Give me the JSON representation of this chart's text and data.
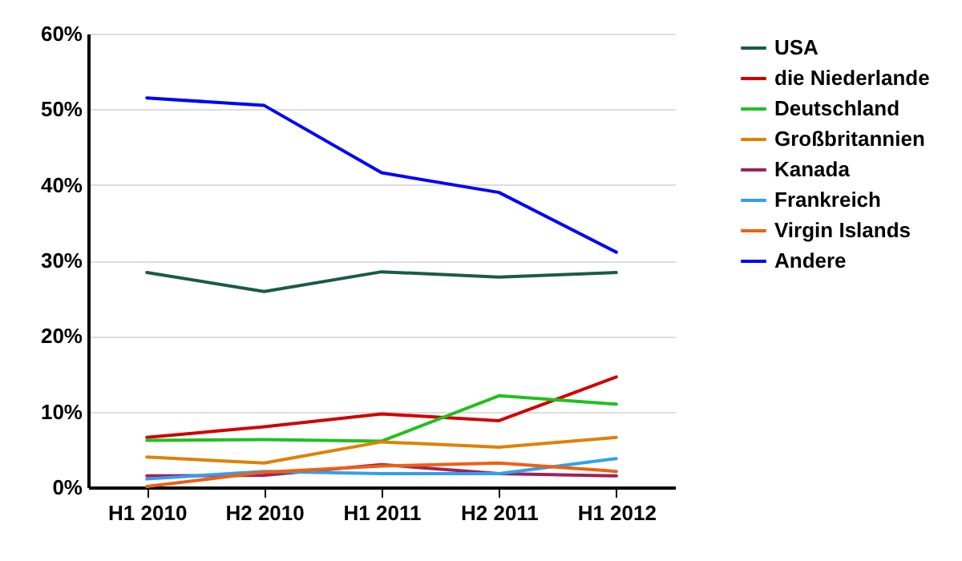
{
  "chart_data": {
    "type": "line",
    "categories": [
      "H1 2010",
      "H2 2010",
      "H1 2011",
      "H2 2011",
      "H1 2012"
    ],
    "series": [
      {
        "name": "USA",
        "color": "#1a5a4a",
        "values": [
          28.4,
          25.9,
          28.5,
          27.8,
          28.4
        ]
      },
      {
        "name": "die Niederlande",
        "color": "#d00000",
        "values": [
          6.6,
          8.0,
          9.7,
          8.8,
          14.6
        ]
      },
      {
        "name": "Deutschland",
        "color": "#20c020",
        "values": [
          6.2,
          6.3,
          6.1,
          12.1,
          11.0
        ]
      },
      {
        "name": "Großbritannien",
        "color": "#e08000",
        "values": [
          4.0,
          3.2,
          6.0,
          5.3,
          6.6
        ]
      },
      {
        "name": "Kanada",
        "color": "#a0205a",
        "values": [
          1.5,
          1.6,
          3.0,
          1.8,
          1.5
        ]
      },
      {
        "name": "Frankreich",
        "color": "#30a0f0",
        "values": [
          1.1,
          2.1,
          1.8,
          1.8,
          3.8
        ]
      },
      {
        "name": "Virgin Islands",
        "color": "#f06010",
        "values": [
          0.1,
          2.0,
          2.8,
          3.2,
          2.1
        ]
      },
      {
        "name": "Andere",
        "color": "#0000ff",
        "values": [
          51.5,
          50.5,
          41.6,
          39.0,
          31.1
        ]
      }
    ],
    "ylim": [
      0,
      60
    ],
    "yticks": [
      {
        "value": 0,
        "label": "0%"
      },
      {
        "value": 10,
        "label": "10%"
      },
      {
        "value": 20,
        "label": "20%"
      },
      {
        "value": 30,
        "label": "30%"
      },
      {
        "value": 40,
        "label": "40%"
      },
      {
        "value": 50,
        "label": "50%"
      },
      {
        "value": 60,
        "label": "60%"
      }
    ],
    "grid": "y",
    "legend": "right",
    "marker": "none",
    "line_style": "solid"
  }
}
